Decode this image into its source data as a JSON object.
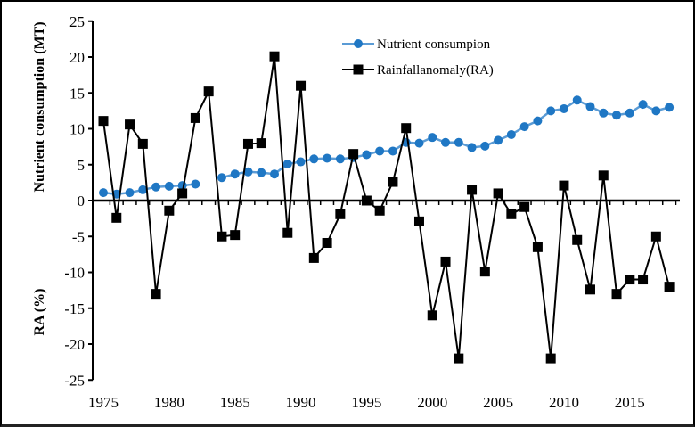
{
  "chart_data": {
    "type": "line",
    "title": "",
    "xlabel": "",
    "ylabel_upper": "Nutrient consumption (MT)",
    "ylabel_lower": "RA (%)",
    "xlim": [
      1975,
      2018
    ],
    "ylim": [
      -25,
      25
    ],
    "yticks": [
      25,
      20,
      15,
      10,
      5,
      0,
      -5,
      -10,
      -15,
      -20,
      -25
    ],
    "xticks": [
      1975,
      1980,
      1985,
      1990,
      1995,
      2000,
      2005,
      2010,
      2015
    ],
    "grid": false,
    "legend_placement": "top-center",
    "x": [
      1975,
      1976,
      1977,
      1978,
      1979,
      1980,
      1981,
      1982,
      1983,
      1984,
      1985,
      1986,
      1987,
      1988,
      1989,
      1990,
      1991,
      1992,
      1993,
      1994,
      1995,
      1996,
      1997,
      1998,
      1999,
      2000,
      2001,
      2002,
      2003,
      2004,
      2005,
      2006,
      2007,
      2008,
      2009,
      2010,
      2011,
      2012,
      2013,
      2014,
      2015,
      2016,
      2017,
      2018
    ],
    "series": [
      {
        "name": "Nutrient consumpion",
        "color": "#1f77c4",
        "marker": "circle",
        "values": [
          1.1,
          0.9,
          1.1,
          1.5,
          1.9,
          2.0,
          2.1,
          2.3,
          null,
          3.2,
          3.7,
          4.0,
          3.9,
          3.7,
          5.1,
          5.4,
          5.8,
          5.9,
          5.8,
          6.0,
          6.4,
          6.9,
          6.9,
          8.1,
          8.0,
          8.8,
          8.1,
          8.1,
          7.4,
          7.6,
          8.4,
          9.2,
          10.3,
          11.1,
          12.5,
          12.8,
          14.0,
          13.1,
          12.2,
          11.9,
          12.2,
          13.4,
          12.5,
          13.0
        ]
      },
      {
        "name": "Rainfallanomaly(RA)",
        "color": "#000000",
        "marker": "square",
        "values": [
          11.1,
          -2.4,
          10.6,
          7.9,
          -13.0,
          -1.4,
          1.0,
          11.5,
          15.2,
          -5.0,
          -4.8,
          7.9,
          8.0,
          20.1,
          -4.5,
          16.0,
          -8.0,
          -5.9,
          -1.9,
          6.5,
          0.0,
          -1.4,
          2.6,
          10.1,
          -2.9,
          -16.0,
          -8.5,
          -22.0,
          1.5,
          -9.9,
          1.0,
          -1.9,
          -0.9,
          -6.5,
          -22.0,
          2.1,
          -5.5,
          -12.4,
          3.5,
          -13.0,
          -11.0,
          -11.0,
          -5.0,
          -12.0
        ]
      }
    ]
  }
}
